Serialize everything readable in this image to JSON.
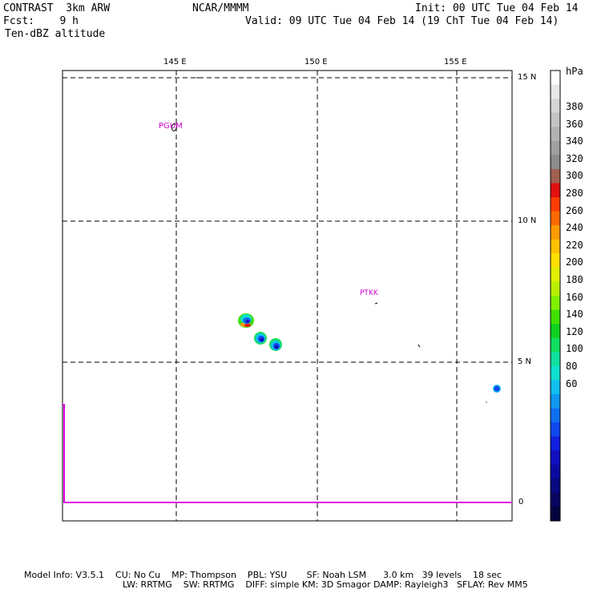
{
  "header": {
    "experiment": "CONTRAST",
    "model": "3km ARW",
    "center": "NCAR/MMMM",
    "init": "Init: 00 UTC Tue 04 Feb 14",
    "fcst_label": "Fcst:",
    "fcst_value": "9 h",
    "valid": "Valid: 09 UTC Tue 04 Feb 14 (19 ChT Tue 04 Feb 14)",
    "field": "Ten-dBZ altitude"
  },
  "map": {
    "lon_labels": [
      "145 E",
      "150 E",
      "155 E"
    ],
    "lat_labels": [
      "15 N",
      "10 N",
      "5 N"
    ],
    "stations": [
      "PGUM",
      "PTKK"
    ]
  },
  "profile_axis": {
    "zero_label": "0"
  },
  "colorbar": {
    "unit": "hPa",
    "labels": [
      "380",
      "360",
      "340",
      "320",
      "300",
      "280",
      "260",
      "240",
      "220",
      "200",
      "180",
      "160",
      "140",
      "120",
      "100",
      "80",
      "60"
    ],
    "colors": [
      "#ffffff",
      "#e8e8e8",
      "#d6d6d6",
      "#c4c4c4",
      "#b2b2b2",
      "#a0a0a0",
      "#8c8c8c",
      "#a06050",
      "#e01010",
      "#ff3c00",
      "#ff6a00",
      "#ff9a00",
      "#ffc000",
      "#ffe000",
      "#e0f000",
      "#b8f000",
      "#80f000",
      "#40e000",
      "#10d020",
      "#10e060",
      "#10e0a0",
      "#10e0d0",
      "#10c0f0",
      "#1098f0",
      "#1070f0",
      "#1048f0",
      "#1020e0",
      "#1010c0",
      "#0a0aa0",
      "#080880",
      "#060660",
      "#040440"
    ]
  },
  "footer": {
    "line1": "Model Info: V3.5.1    CU: No Cu    MP: Thompson    PBL: YSU       SF: Noah LSM      3.0 km   39 levels    18 sec",
    "line2": "LW: RRTMG    SW: RRTMG    DIFF: simple KM: 3D Smagor DAMP: Rayleigh3   SFLAY: Rev MM5"
  }
}
